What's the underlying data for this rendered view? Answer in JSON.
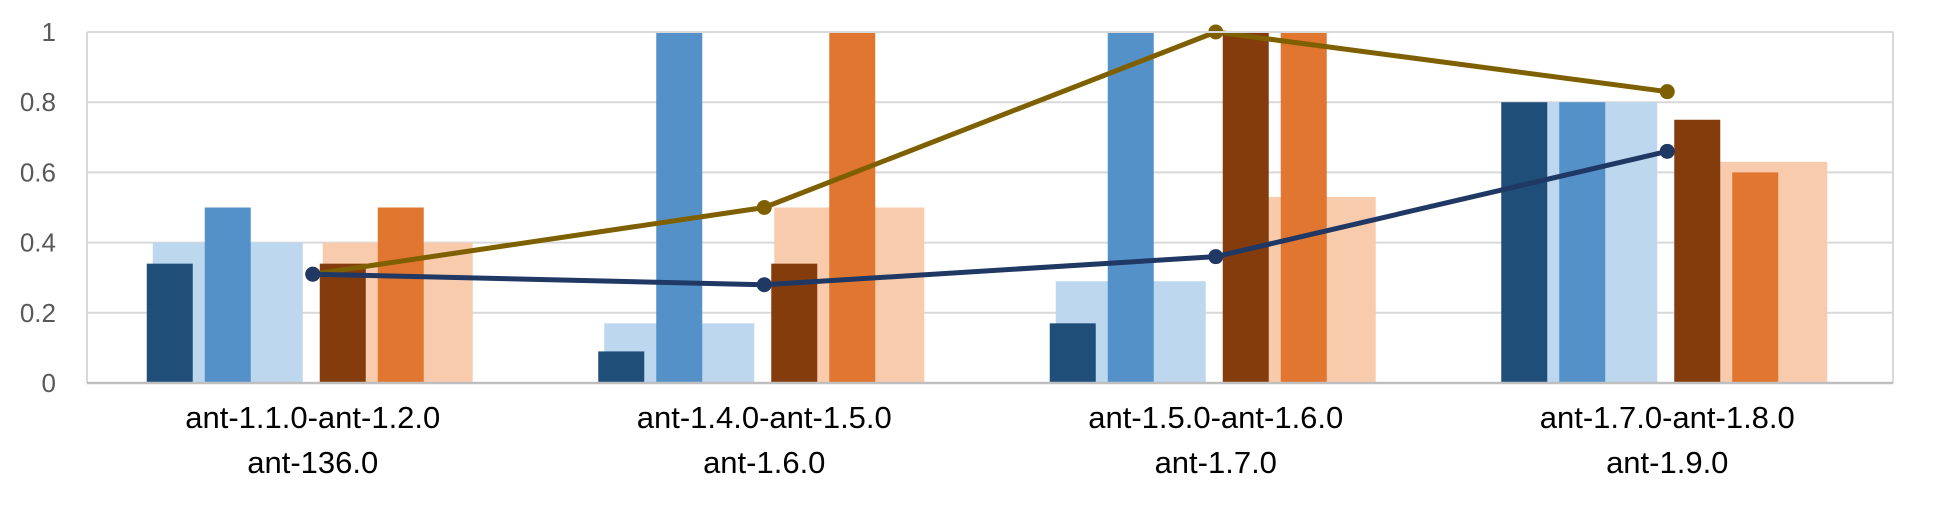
{
  "chart_data": {
    "type": "bar",
    "categories": [
      [
        "ant-1.1.0-ant-1.2.0",
        "ant-136.0"
      ],
      [
        "ant-1.4.0-ant-1.5.0",
        "ant-1.6.0"
      ],
      [
        "ant-1.5.0-ant-1.6.0",
        "ant-1.7.0"
      ],
      [
        "ant-1.7.0-ant-1.8.0",
        "ant-1.9.0"
      ]
    ],
    "ylim": [
      0,
      1
    ],
    "yticks": [
      "0",
      "0.2",
      "0.4",
      "0.6",
      "0.8",
      "1"
    ],
    "grid": true,
    "legend": "none",
    "wide_bars": [
      {
        "color": "#bdd7ee",
        "values": [
          0.4,
          0.17,
          0.29,
          0.8
        ]
      },
      {
        "color": "#f8cbad",
        "values": [
          0.4,
          0.5,
          0.53,
          0.63
        ]
      }
    ],
    "narrow_bars": [
      {
        "color": "#1f4e79",
        "values": [
          0.34,
          0.09,
          0.17,
          0.8
        ]
      },
      {
        "color": "#5591c9",
        "values": [
          0.5,
          1.0,
          1.0,
          0.8
        ]
      },
      {
        "color": "#843c0c",
        "values": [
          0.34,
          0.34,
          1.0,
          0.75
        ]
      },
      {
        "color": "#e07630",
        "values": [
          0.5,
          1.0,
          1.0,
          0.6
        ]
      }
    ],
    "lines": [
      {
        "color": "#7f6000",
        "values": [
          0.31,
          0.5,
          1.0,
          0.83
        ]
      },
      {
        "color": "#203864",
        "values": [
          0.31,
          0.28,
          0.36,
          0.66
        ]
      }
    ]
  }
}
